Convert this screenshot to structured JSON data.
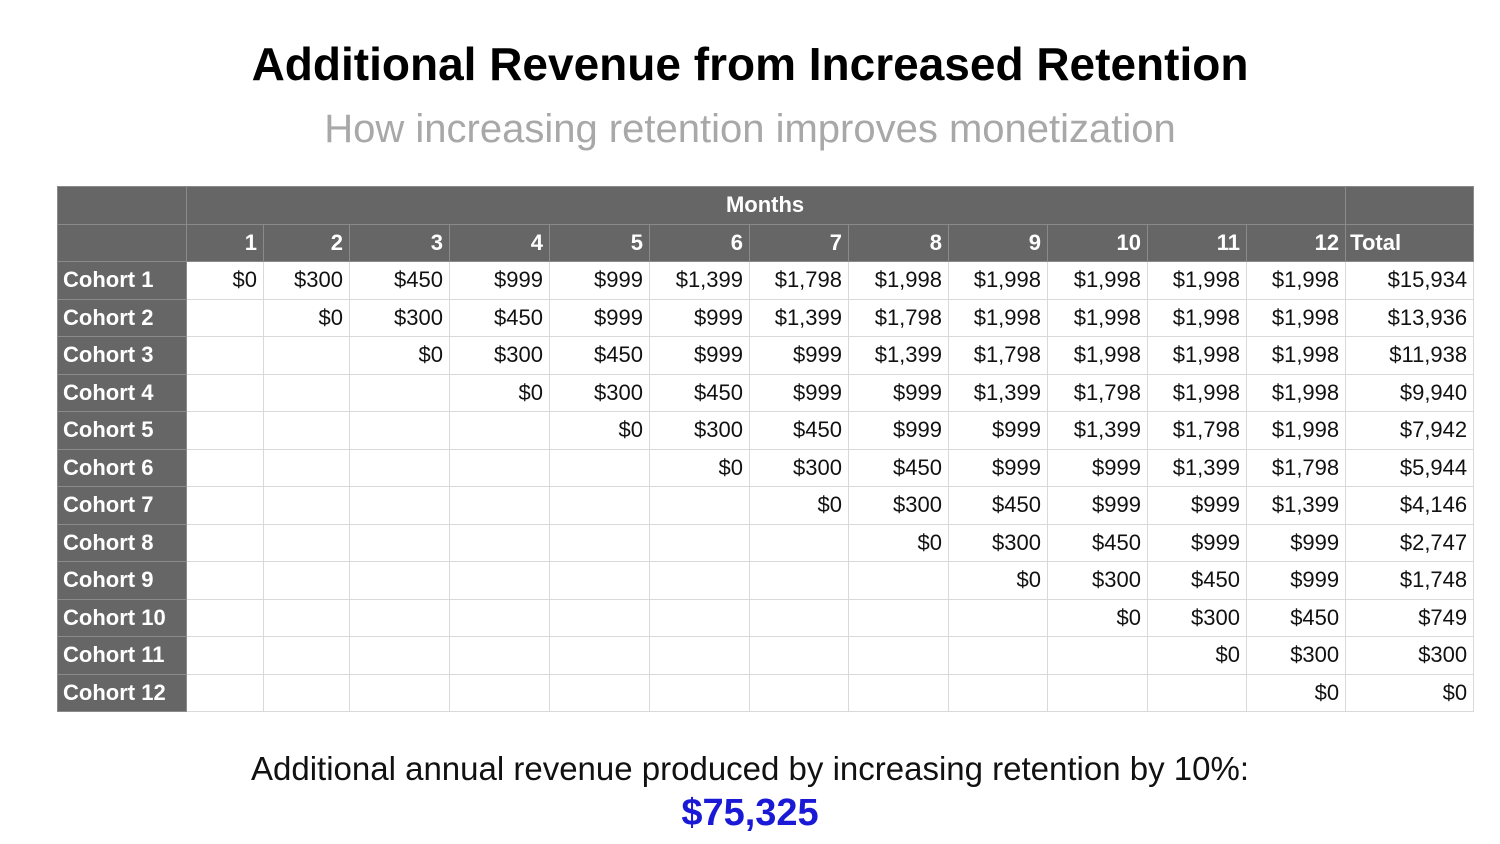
{
  "slide": {
    "title": "Additional Revenue from Increased Retention",
    "subtitle": "How increasing retention improves monetization"
  },
  "table": {
    "group_header": "Months",
    "columns": [
      "1",
      "2",
      "3",
      "4",
      "5",
      "6",
      "7",
      "8",
      "9",
      "10",
      "11",
      "12"
    ],
    "total_header": "Total",
    "rows": [
      {
        "label": "Cohort 1",
        "values": [
          "$0",
          "$300",
          "$450",
          "$999",
          "$999",
          "$1,399",
          "$1,798",
          "$1,998",
          "$1,998",
          "$1,998",
          "$1,998",
          "$1,998"
        ],
        "total": "$15,934"
      },
      {
        "label": "Cohort 2",
        "values": [
          "",
          "$0",
          "$300",
          "$450",
          "$999",
          "$999",
          "$1,399",
          "$1,798",
          "$1,998",
          "$1,998",
          "$1,998",
          "$1,998"
        ],
        "total": "$13,936"
      },
      {
        "label": "Cohort 3",
        "values": [
          "",
          "",
          "$0",
          "$300",
          "$450",
          "$999",
          "$999",
          "$1,399",
          "$1,798",
          "$1,998",
          "$1,998",
          "$1,998"
        ],
        "total": "$11,938"
      },
      {
        "label": "Cohort 4",
        "values": [
          "",
          "",
          "",
          "$0",
          "$300",
          "$450",
          "$999",
          "$999",
          "$1,399",
          "$1,798",
          "$1,998",
          "$1,998"
        ],
        "total": "$9,940"
      },
      {
        "label": "Cohort 5",
        "values": [
          "",
          "",
          "",
          "",
          "$0",
          "$300",
          "$450",
          "$999",
          "$999",
          "$1,399",
          "$1,798",
          "$1,998"
        ],
        "total": "$7,942"
      },
      {
        "label": "Cohort 6",
        "values": [
          "",
          "",
          "",
          "",
          "",
          "$0",
          "$300",
          "$450",
          "$999",
          "$999",
          "$1,399",
          "$1,798"
        ],
        "total": "$5,944"
      },
      {
        "label": "Cohort 7",
        "values": [
          "",
          "",
          "",
          "",
          "",
          "",
          "$0",
          "$300",
          "$450",
          "$999",
          "$999",
          "$1,399"
        ],
        "total": "$4,146"
      },
      {
        "label": "Cohort 8",
        "values": [
          "",
          "",
          "",
          "",
          "",
          "",
          "",
          "$0",
          "$300",
          "$450",
          "$999",
          "$999"
        ],
        "total": "$2,747"
      },
      {
        "label": "Cohort 9",
        "values": [
          "",
          "",
          "",
          "",
          "",
          "",
          "",
          "",
          "$0",
          "$300",
          "$450",
          "$999"
        ],
        "total": "$1,748"
      },
      {
        "label": "Cohort 10",
        "values": [
          "",
          "",
          "",
          "",
          "",
          "",
          "",
          "",
          "",
          "$0",
          "$300",
          "$450"
        ],
        "total": "$749"
      },
      {
        "label": "Cohort 11",
        "values": [
          "",
          "",
          "",
          "",
          "",
          "",
          "",
          "",
          "",
          "",
          "$0",
          "$300"
        ],
        "total": "$300"
      },
      {
        "label": "Cohort 12",
        "values": [
          "",
          "",
          "",
          "",
          "",
          "",
          "",
          "",
          "",
          "",
          "",
          "$0"
        ],
        "total": "$0"
      }
    ]
  },
  "footer": {
    "text": "Additional annual revenue produced by increasing retention by 10%:",
    "value": "$75,325"
  },
  "colors": {
    "header_bg": "#666666",
    "header_text": "#ffffff",
    "subtitle": "#a8a8a8",
    "highlight": "#1a1ad6"
  }
}
